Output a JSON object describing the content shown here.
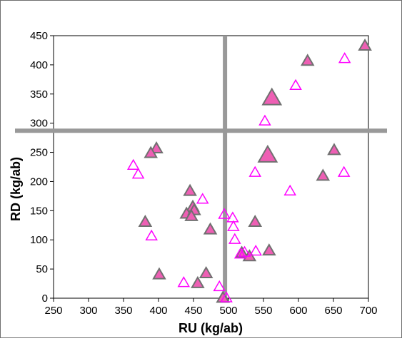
{
  "chart_data": {
    "type": "scatter",
    "xlabel": "RU (kg/ab)",
    "ylabel": "RD (kg/ab)",
    "xlim": [
      250,
      700
    ],
    "ylim": [
      0,
      450
    ],
    "x_ticks": [
      "250",
      "300",
      "350",
      "400",
      "450",
      "500",
      "550",
      "600",
      "650",
      "700"
    ],
    "y_ticks": [
      "0",
      "50",
      "100",
      "150",
      "200",
      "250",
      "300",
      "350",
      "400",
      "450"
    ],
    "grid": false,
    "reference_lines": {
      "x": 495,
      "y": 287
    },
    "colors": {
      "fill": "#ee5fb4",
      "filled_stroke": "#707070",
      "open_stroke": "#ff00ff",
      "reference_line": "#999999"
    },
    "series": [
      {
        "marker": "filled-triangle",
        "points": [
          [
            695,
            432
          ],
          [
            613,
            406
          ],
          [
            397,
            256
          ],
          [
            389,
            248
          ],
          [
            445,
            183
          ],
          [
            449,
            156
          ],
          [
            440,
            144
          ],
          [
            451,
            150
          ],
          [
            447,
            140
          ],
          [
            474,
            117
          ],
          [
            381,
            130
          ],
          [
            401,
            40
          ],
          [
            456,
            25
          ],
          [
            468,
            42
          ],
          [
            492,
            0
          ],
          [
            519,
            77
          ],
          [
            530,
            71
          ],
          [
            558,
            81
          ],
          [
            538,
            130
          ],
          [
            635,
            209
          ],
          [
            651,
            253
          ]
        ]
      },
      {
        "marker": "large-filled-triangle",
        "points": [
          [
            562,
            342
          ],
          [
            556,
            244
          ]
        ]
      },
      {
        "marker": "open-triangle",
        "points": [
          [
            666,
            410
          ],
          [
            596,
            364
          ],
          [
            552,
            303
          ],
          [
            364,
            227
          ],
          [
            371,
            212
          ],
          [
            538,
            215
          ],
          [
            588,
            183
          ],
          [
            665,
            215
          ],
          [
            463,
            169
          ],
          [
            494,
            143
          ],
          [
            506,
            137
          ],
          [
            507,
            122
          ],
          [
            509,
            100
          ],
          [
            390,
            106
          ],
          [
            539,
            80
          ],
          [
            517,
            75
          ],
          [
            523,
            78
          ],
          [
            436,
            26
          ],
          [
            487,
            19
          ],
          [
            497,
            0
          ]
        ]
      }
    ]
  }
}
